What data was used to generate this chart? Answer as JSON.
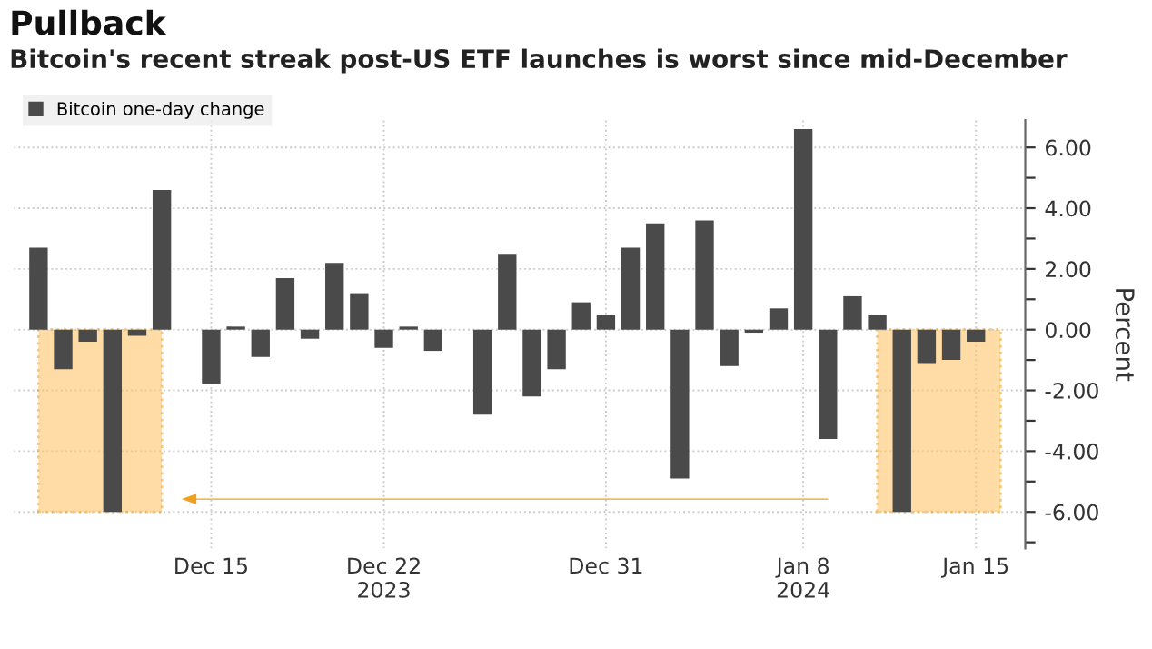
{
  "chart_data": {
    "type": "bar",
    "title": "Pullback",
    "subtitle": "Bitcoin's recent streak post-US ETF launches is worst since mid-December",
    "ylabel": "Percent",
    "x": [
      "2023-12-08",
      "2023-12-09",
      "2023-12-10",
      "2023-12-11",
      "2023-12-12",
      "2023-12-13",
      "2023-12-14",
      "2023-12-15",
      "2023-12-16",
      "2023-12-17",
      "2023-12-18",
      "2023-12-19",
      "2023-12-20",
      "2023-12-21",
      "2023-12-22",
      "2023-12-23",
      "2023-12-24",
      "2023-12-25",
      "2023-12-26",
      "2023-12-27",
      "2023-12-28",
      "2023-12-29",
      "2023-12-30",
      "2023-12-31",
      "2024-01-01",
      "2024-01-02",
      "2024-01-03",
      "2024-01-04",
      "2024-01-05",
      "2024-01-06",
      "2024-01-07",
      "2024-01-08",
      "2024-01-09",
      "2024-01-10",
      "2024-01-11",
      "2024-01-12",
      "2024-01-13",
      "2024-01-14",
      "2024-01-15"
    ],
    "series": [
      {
        "name": "Bitcoin one-day change",
        "color": "#4a4a4a",
        "values": [
          2.7,
          -1.3,
          -0.4,
          -6.0,
          -0.2,
          4.6,
          0.0,
          -1.8,
          0.1,
          -0.9,
          1.7,
          -0.3,
          2.2,
          1.2,
          -0.6,
          0.1,
          -0.7,
          0.0,
          -2.8,
          2.5,
          -2.2,
          -1.3,
          0.9,
          0.5,
          2.7,
          3.5,
          -4.9,
          3.6,
          -1.2,
          -0.1,
          0.7,
          6.6,
          -3.6,
          1.1,
          0.5,
          -6.0,
          -1.1,
          -1.0,
          -0.4
        ]
      }
    ],
    "ylim": [
      -7.2,
      6.9
    ],
    "yticks": [
      {
        "value": -7,
        "label": null
      },
      {
        "value": -6,
        "label": "-6.00"
      },
      {
        "value": -5,
        "label": null
      },
      {
        "value": -4,
        "label": "-4.00"
      },
      {
        "value": -3,
        "label": null
      },
      {
        "value": -2,
        "label": "-2.00"
      },
      {
        "value": -1,
        "label": null
      },
      {
        "value": 0,
        "label": "0.00"
      },
      {
        "value": 1,
        "label": null
      },
      {
        "value": 2,
        "label": "2.00"
      },
      {
        "value": 3,
        "label": null
      },
      {
        "value": 4,
        "label": "4.00"
      },
      {
        "value": 5,
        "label": null
      },
      {
        "value": 6,
        "label": "6.00"
      }
    ],
    "xlim": [
      "2023-12-07",
      "2024-01-17"
    ],
    "xticks": [
      {
        "value": "2023-12-15",
        "label": "Dec 15"
      },
      {
        "value": "2023-12-22",
        "label": "Dec 22\n2023"
      },
      {
        "value": "2023-12-31",
        "label": "Dec 31"
      },
      {
        "value": "2024-01-08",
        "label": "Jan 8\n2024"
      },
      {
        "value": "2024-01-15",
        "label": "Jan 15"
      }
    ],
    "bands": [
      {
        "axis": "x",
        "from": "2023-12-08",
        "to": "2023-12-13",
        "color": "#ffc46b"
      },
      {
        "axis": "x",
        "from": "2024-01-11",
        "to": "2024-01-16",
        "color": "#ffc46b"
      }
    ],
    "grid": true,
    "legend": "top left"
  }
}
